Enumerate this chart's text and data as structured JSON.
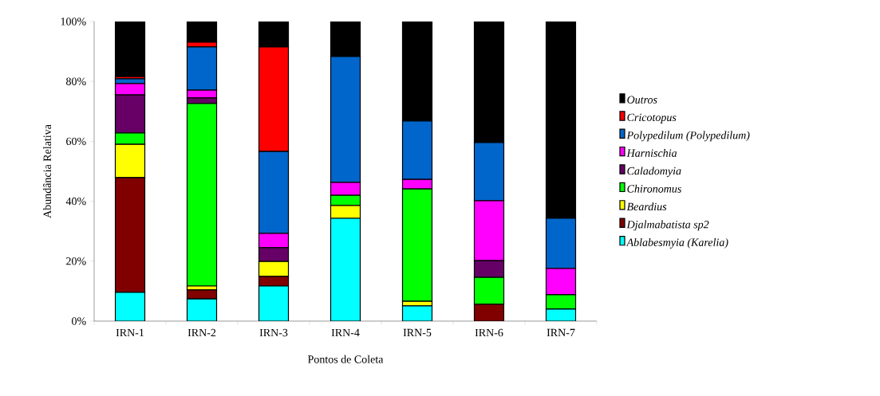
{
  "chart_data": {
    "type": "bar",
    "stacked": true,
    "xlabel": "Pontos de Coleta",
    "ylabel": "Abundância Relativa",
    "categories": [
      "IRN-1",
      "IRN-2",
      "IRN-3",
      "IRN-4",
      "IRN-5",
      "IRN-6",
      "IRN-7"
    ],
    "ylim": [
      0,
      100
    ],
    "yticks": [
      {
        "value": 0,
        "label": "0%"
      },
      {
        "value": 20,
        "label": "20%"
      },
      {
        "value": 40,
        "label": "40%"
      },
      {
        "value": 60,
        "label": "60%"
      },
      {
        "value": 80,
        "label": "80%"
      },
      {
        "value": 100,
        "label": "100%"
      }
    ],
    "grid": false,
    "legend": "right",
    "series": [
      {
        "name": "Ablabesmyia (Karelia)",
        "color": "#00ffff",
        "values": [
          9.6,
          7.4,
          11.7,
          34.3,
          5.1,
          0,
          4.0
        ]
      },
      {
        "name": "Djalmabatista sp2",
        "color": "#800000",
        "values": [
          38.3,
          3.0,
          3.2,
          0,
          0,
          5.6,
          0
        ]
      },
      {
        "name": "Beardius",
        "color": "#ffff00",
        "values": [
          11.1,
          1.3,
          5.0,
          4.3,
          1.5,
          0,
          0
        ]
      },
      {
        "name": "Chironomus",
        "color": "#00ff00",
        "values": [
          3.8,
          60.9,
          0,
          3.4,
          37.5,
          9.0,
          4.8
        ]
      },
      {
        "name": "Caladomyia",
        "color": "#660066",
        "values": [
          12.7,
          1.9,
          4.6,
          0,
          0,
          5.6,
          0
        ]
      },
      {
        "name": "Harnischia",
        "color": "#ff00ff",
        "values": [
          3.8,
          2.6,
          4.8,
          4.3,
          3.2,
          20.0,
          8.8
        ]
      },
      {
        "name": "Polypedilum (Polypedilum)",
        "color": "#0066cc",
        "values": [
          1.6,
          14.4,
          27.3,
          42.0,
          19.5,
          19.4,
          16.7
        ]
      },
      {
        "name": "Cricotopus",
        "color": "#ff0000",
        "values": [
          0.7,
          1.6,
          34.9,
          0,
          0,
          0,
          0
        ]
      },
      {
        "name": "Outros",
        "color": "#000000",
        "values": [
          18.4,
          6.9,
          8.5,
          11.7,
          33.2,
          40.4,
          65.7
        ]
      }
    ]
  }
}
